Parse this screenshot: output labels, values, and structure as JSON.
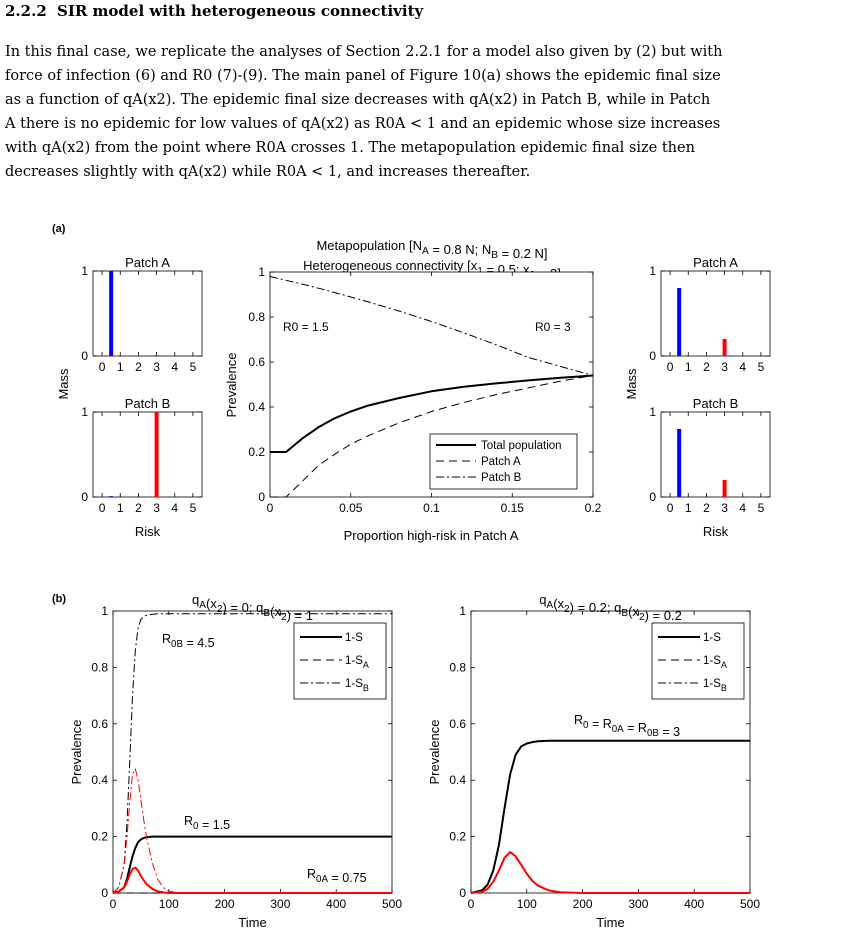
{
  "section": {
    "number": "2.2.2",
    "title": "SIR model with heterogeneous connectivity"
  },
  "paragraph": [
    "In this final case, we replicate the analyses of Section 2.2.1 for a model also given by (2) but with",
    "force of infection (6) and R0 (7)-(9). The main panel of Figure 10(a) shows the epidemic final size",
    "as a function of qA(x2). The epidemic final size decreases with qA(x2) in Patch B, while in Patch",
    "A there is no epidemic for low values of qA(x2) as R0A < 1 and an epidemic whose size increases",
    "with qA(x2) from the point where R0A crosses 1. The metapopulation epidemic final size then",
    "decreases slightly with qA(x2) while R0A < 1, and increases thereafter."
  ],
  "colors": {
    "blue": "#0000ff",
    "red": "#ff0000",
    "black": "#000000",
    "link": "#2f4fd8"
  },
  "fig": {
    "a": {
      "label": "(a)",
      "title1": "Metapopulation [N_A = 0.8 N; N_B = 0.2 N]",
      "title2": "Heterogeneous connectivity [x_1 = 0.5; x_2 = 3]",
      "xlabel": "Proportion high-risk in Patch A",
      "ylabel": "Prevalence",
      "left_note": "R0 = 1.5",
      "right_note": "R0 = 3",
      "legend": [
        "Total population",
        "Patch A",
        "Patch B"
      ],
      "xticks": [
        "0",
        "0.05",
        "0.1",
        "0.15",
        "0.2"
      ],
      "yticks": [
        "0",
        "0.2",
        "0.4",
        "0.6",
        "0.8",
        "1"
      ],
      "mass_label": "Mass",
      "risk_label": "Risk",
      "patchA_title": "Patch A",
      "patchB_title": "Patch B",
      "risk_ticks": [
        "0",
        "1",
        "2",
        "3",
        "4",
        "5"
      ],
      "mass_ticks": [
        "0",
        "1"
      ]
    },
    "b": {
      "label": "(b)",
      "left_title": "q_A(x_2) = 0; q_B(x_2) = 1",
      "right_title": "q_A(x_2) = 0.2; q_B(x_2) = 0.2",
      "xlabel": "Time",
      "ylabel": "Prevalence",
      "legend": [
        "1-S",
        "1-S_A",
        "1-S_B"
      ],
      "xticks": [
        "0",
        "100",
        "200",
        "300",
        "400",
        "500"
      ],
      "yticks": [
        "0",
        "0.2",
        "0.4",
        "0.6",
        "0.8",
        "1"
      ],
      "left_notes": [
        "R_0B = 4.5",
        "R_0 = 1.5",
        "R_0A = 0.75"
      ],
      "right_notes": [
        "R_0 = R_0A = R_0B = 3"
      ]
    }
  },
  "chart_data": [
    {
      "type": "line",
      "name": "a-main",
      "x": [
        0,
        0.01,
        0.02,
        0.03,
        0.04,
        0.05,
        0.06,
        0.08,
        0.1,
        0.12,
        0.14,
        0.16,
        0.18,
        0.2
      ],
      "series": [
        {
          "name": "Total population",
          "values": [
            0.2,
            0.2,
            0.26,
            0.31,
            0.35,
            0.38,
            0.405,
            0.44,
            0.47,
            0.49,
            0.505,
            0.518,
            0.53,
            0.54
          ]
        },
        {
          "name": "Patch A",
          "values": [
            0,
            0,
            0.07,
            0.14,
            0.19,
            0.235,
            0.27,
            0.33,
            0.38,
            0.42,
            0.455,
            0.485,
            0.515,
            0.54
          ]
        },
        {
          "name": "Patch B",
          "values": [
            0.98,
            0.963,
            0.946,
            0.928,
            0.909,
            0.889,
            0.869,
            0.826,
            0.78,
            0.73,
            0.677,
            0.62,
            0.58,
            0.54
          ]
        }
      ],
      "xlim": [
        0,
        0.2
      ],
      "ylim": [
        0,
        1
      ]
    },
    {
      "type": "bar",
      "name": "a-left-patchA",
      "categories": [
        "0.5",
        "3"
      ],
      "values": [
        1,
        0
      ],
      "xlim": [
        -0.5,
        5.5
      ],
      "ylim": [
        0,
        1
      ]
    },
    {
      "type": "bar",
      "name": "a-left-patchB",
      "categories": [
        "0.5",
        "3"
      ],
      "values": [
        0,
        1
      ],
      "xlim": [
        -0.5,
        5.5
      ],
      "ylim": [
        0,
        1
      ]
    },
    {
      "type": "bar",
      "name": "a-right-patchA",
      "categories": [
        "0.5",
        "3"
      ],
      "values": [
        0.8,
        0.2
      ],
      "xlim": [
        -0.5,
        5.5
      ],
      "ylim": [
        0,
        1
      ]
    },
    {
      "type": "bar",
      "name": "a-right-patchB",
      "categories": [
        "0.5",
        "3"
      ],
      "values": [
        0.8,
        0.2
      ],
      "xlim": [
        -0.5,
        5.5
      ],
      "ylim": [
        0,
        1
      ]
    },
    {
      "type": "line",
      "name": "b-left",
      "x": [
        0,
        10,
        20,
        25,
        30,
        35,
        40,
        45,
        50,
        55,
        60,
        70,
        80,
        90,
        100,
        120,
        150,
        200,
        300,
        400,
        500
      ],
      "series": [
        {
          "name": "1-S",
          "values": [
            0,
            0.005,
            0.02,
            0.05,
            0.09,
            0.13,
            0.16,
            0.18,
            0.19,
            0.195,
            0.198,
            0.2,
            0.2,
            0.2,
            0.2,
            0.2,
            0.2,
            0.2,
            0.2,
            0.2,
            0.2
          ]
        },
        {
          "name": "1-S_A",
          "values": [
            0,
            0,
            0,
            0,
            0,
            0,
            0,
            0,
            0,
            0,
            0,
            0,
            0,
            0,
            0,
            0,
            0,
            0,
            0,
            0,
            0
          ]
        },
        {
          "name": "1-S_B",
          "values": [
            0,
            0.02,
            0.1,
            0.25,
            0.46,
            0.7,
            0.86,
            0.94,
            0.97,
            0.98,
            0.985,
            0.988,
            0.99,
            0.99,
            0.99,
            0.99,
            0.99,
            0.99,
            0.99,
            0.99,
            0.99
          ]
        },
        {
          "name": "I",
          "values": [
            0,
            0.005,
            0.02,
            0.04,
            0.065,
            0.085,
            0.09,
            0.08,
            0.06,
            0.045,
            0.032,
            0.015,
            0.006,
            0.002,
            0,
            0,
            0,
            0,
            0,
            0,
            0
          ]
        },
        {
          "name": "I_B",
          "values": [
            0,
            0.02,
            0.1,
            0.2,
            0.32,
            0.42,
            0.44,
            0.4,
            0.33,
            0.26,
            0.2,
            0.11,
            0.05,
            0.02,
            0.006,
            0,
            0,
            0,
            0,
            0,
            0
          ]
        }
      ],
      "xlim": [
        0,
        500
      ],
      "ylim": [
        0,
        1
      ]
    },
    {
      "type": "line",
      "name": "b-right",
      "x": [
        0,
        20,
        30,
        40,
        50,
        60,
        70,
        80,
        90,
        100,
        110,
        120,
        140,
        160,
        200,
        300,
        400,
        500
      ],
      "series": [
        {
          "name": "1-S",
          "values": [
            0,
            0.01,
            0.03,
            0.08,
            0.17,
            0.3,
            0.42,
            0.49,
            0.52,
            0.53,
            0.535,
            0.538,
            0.54,
            0.54,
            0.54,
            0.54,
            0.54,
            0.54
          ]
        },
        {
          "name": "1-S_A",
          "values": [
            0,
            0.01,
            0.03,
            0.08,
            0.17,
            0.3,
            0.42,
            0.49,
            0.52,
            0.53,
            0.535,
            0.538,
            0.54,
            0.54,
            0.54,
            0.54,
            0.54,
            0.54
          ]
        },
        {
          "name": "1-S_B",
          "values": [
            0,
            0.01,
            0.03,
            0.08,
            0.17,
            0.3,
            0.42,
            0.49,
            0.52,
            0.53,
            0.535,
            0.538,
            0.54,
            0.54,
            0.54,
            0.54,
            0.54,
            0.54
          ]
        },
        {
          "name": "I",
          "values": [
            0,
            0.005,
            0.015,
            0.04,
            0.08,
            0.125,
            0.145,
            0.13,
            0.1,
            0.068,
            0.043,
            0.026,
            0.009,
            0.003,
            0,
            0,
            0,
            0
          ]
        }
      ],
      "xlim": [
        0,
        500
      ],
      "ylim": [
        0,
        1
      ]
    }
  ]
}
